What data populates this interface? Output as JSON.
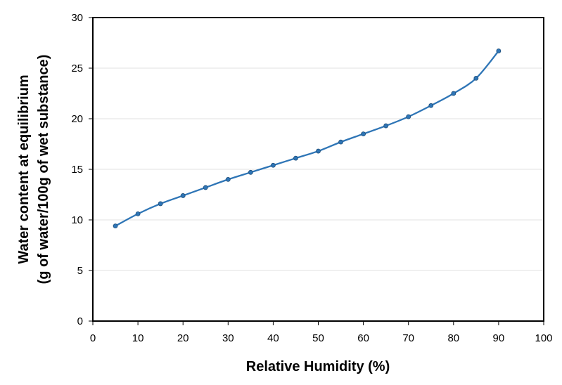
{
  "chart_data": {
    "type": "line",
    "title": "",
    "xlabel": "Relative Humidity (%)",
    "ylabel_line1": "Water content at equilibrium",
    "ylabel_line2": "(g of water/100g of wet substance)",
    "xlim": [
      0,
      100
    ],
    "ylim": [
      0,
      30
    ],
    "x_ticks": [
      0,
      10,
      20,
      30,
      40,
      50,
      60,
      70,
      80,
      90,
      100
    ],
    "y_ticks": [
      0,
      5,
      10,
      15,
      20,
      25,
      30
    ],
    "grid": {
      "horizontal": true,
      "vertical": false
    },
    "legend": null,
    "series": [
      {
        "name": "Water content",
        "color": "#2E75B6",
        "marker": "circle",
        "smooth": true,
        "x": [
          5,
          10,
          15,
          20,
          25,
          30,
          35,
          40,
          45,
          50,
          55,
          60,
          65,
          70,
          75,
          80,
          85,
          90
        ],
        "y": [
          9.4,
          10.6,
          11.6,
          12.4,
          13.2,
          14.0,
          14.7,
          15.4,
          16.1,
          16.8,
          17.7,
          18.5,
          19.3,
          20.2,
          21.3,
          22.5,
          24.0,
          26.7
        ]
      }
    ]
  },
  "colors": {
    "line": "#2E75B6",
    "marker": "#2E75B6",
    "gridline": "#E6E6E6",
    "axis": "#000000"
  }
}
